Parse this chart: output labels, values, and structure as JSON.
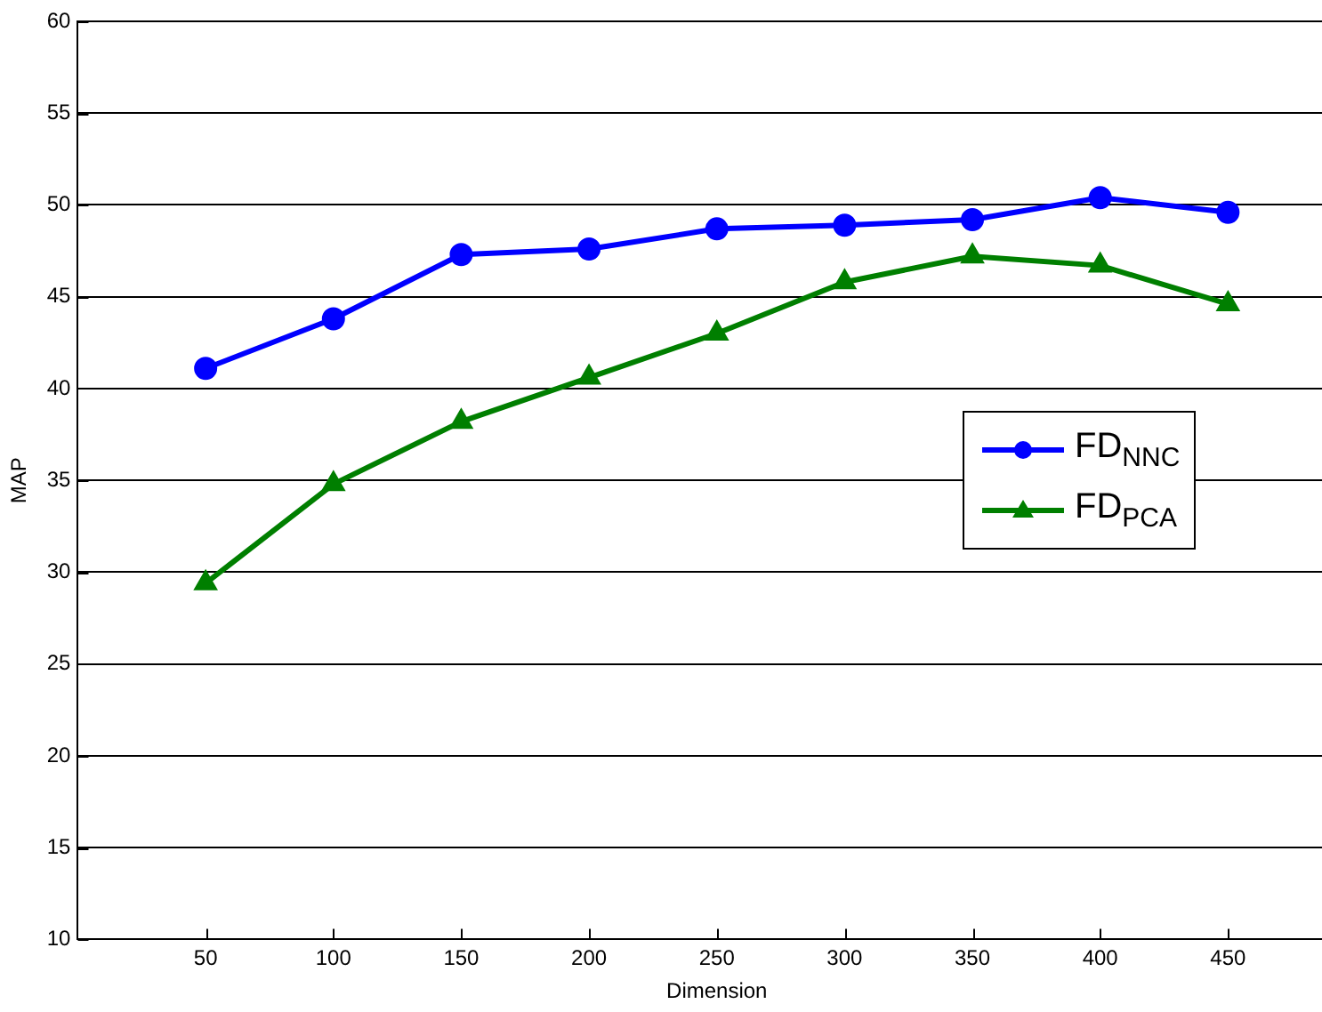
{
  "chart_data": {
    "type": "line",
    "xlabel": "Dimension",
    "ylabel": "MAP",
    "x": [
      50,
      100,
      150,
      200,
      250,
      300,
      350,
      400,
      450
    ],
    "series": [
      {
        "name": "FD$_{NNC}$",
        "color": "#0000ff",
        "marker": "circle",
        "values": [
          41.1,
          43.8,
          47.3,
          47.6,
          48.7,
          48.9,
          49.2,
          50.4,
          49.6
        ]
      },
      {
        "name": "FD$_{PCA}$",
        "color": "#007f00",
        "marker": "triangle",
        "values": [
          29.4,
          34.8,
          38.2,
          40.6,
          43.0,
          45.8,
          47.2,
          46.7,
          44.6
        ]
      }
    ],
    "xlim": [
      0,
      500
    ],
    "xticks": [
      50,
      100,
      150,
      200,
      250,
      300,
      350,
      400,
      450
    ],
    "ylim": [
      10,
      60
    ],
    "yticks": [
      10,
      15,
      20,
      25,
      30,
      35,
      40,
      45,
      50,
      55,
      60
    ],
    "grid": "y",
    "legend": "right",
    "line_style": "solid"
  }
}
